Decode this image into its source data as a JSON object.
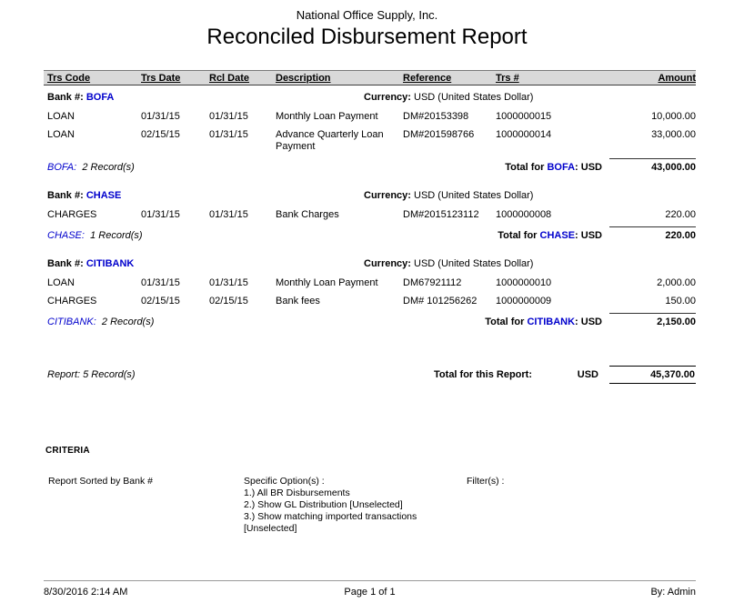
{
  "colors": {
    "bank_code_blue": "#0000cc",
    "header_band": "#d9d9d9"
  },
  "header": {
    "company": "National Office Supply, Inc.",
    "title": "Reconciled Disbursement Report"
  },
  "labels": {
    "bank": "Bank #:",
    "currency": "Currency:",
    "total_prefix": "Total for"
  },
  "table": {
    "headers": [
      "Trs Code",
      "Trs Date",
      "Rcl Date",
      "Description",
      "Reference",
      "Trs #",
      "Amount"
    ]
  },
  "groups": [
    {
      "bank_code": "BOFA",
      "currency": "USD (United States Dollar)",
      "rows": [
        {
          "trs_code": "LOAN",
          "trs_date": "01/31/15",
          "rcl_date": "01/31/15",
          "description": "Monthly Loan Payment",
          "reference": "DM#20153398",
          "trs_num": "1000000015",
          "amount": "10,000.00"
        },
        {
          "trs_code": "LOAN",
          "trs_date": "02/15/15",
          "rcl_date": "01/31/15",
          "description": "Advance Quarterly Loan Payment",
          "reference": "DM#201598766",
          "trs_num": "1000000014",
          "amount": "33,000.00"
        }
      ],
      "records_code": "BOFA:",
      "records_text": "2 Record(s)",
      "total_code": "BOFA",
      "total_suffix": ": USD",
      "total_amount": "43,000.00"
    },
    {
      "bank_code": "CHASE",
      "currency": "USD (United States Dollar)",
      "rows": [
        {
          "trs_code": "CHARGES",
          "trs_date": "01/31/15",
          "rcl_date": "01/31/15",
          "description": "Bank Charges",
          "reference": "DM#2015123112",
          "trs_num": "1000000008",
          "amount": "220.00"
        }
      ],
      "records_code": "CHASE:",
      "records_text": "1 Record(s)",
      "total_code": "CHASE",
      "total_suffix": ": USD",
      "total_amount": "220.00"
    },
    {
      "bank_code": "CITIBANK",
      "currency": "USD (United States Dollar)",
      "rows": [
        {
          "trs_code": "LOAN",
          "trs_date": "01/31/15",
          "rcl_date": "01/31/15",
          "description": "Monthly Loan Payment",
          "reference": "DM67921112",
          "trs_num": "1000000010",
          "amount": "2,000.00"
        },
        {
          "trs_code": "CHARGES",
          "trs_date": "02/15/15",
          "rcl_date": "02/15/15",
          "description": "Bank fees",
          "reference": "DM# 101256262",
          "trs_num": "1000000009",
          "amount": "150.00"
        }
      ],
      "records_code": "CITIBANK:",
      "records_text": "2 Record(s)",
      "total_code": "CITIBANK",
      "total_suffix": ": USD",
      "total_amount": "2,150.00"
    }
  ],
  "report_total": {
    "records": "Report: 5 Record(s)",
    "label": "Total for this Report:",
    "currency": "USD",
    "amount": "45,370.00"
  },
  "criteria": {
    "heading": "CRITERIA",
    "sorted_by": "Report Sorted by Bank #",
    "options_label": "Specific Option(s) :",
    "options": [
      "1.) All BR Disbursements",
      "2.) Show GL Distribution [Unselected]",
      "3.) Show matching imported transactions [Unselected]"
    ],
    "filters_label": "Filter(s) :"
  },
  "footer": {
    "datetime": "8/30/2016 2:14 AM",
    "page": "Page 1 of 1",
    "by": "By: Admin"
  }
}
